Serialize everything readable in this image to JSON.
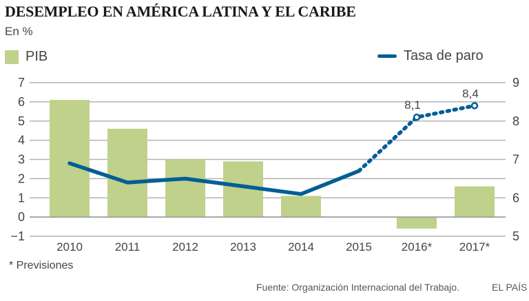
{
  "header": {
    "title": "DESEMPLEO EN AMÉRICA LATINA Y EL CARIBE",
    "unit": "En %"
  },
  "footer": {
    "footnote": "* Previsiones",
    "source": "Fuente: Organización Internacional del Trabajo.",
    "brand": "EL PAÍS"
  },
  "colors": {
    "bar": "#bfd18a",
    "line": "#005e96",
    "grid": "#b3b3b3",
    "text": "#444444"
  },
  "chart_data": {
    "type": "bar",
    "title": "DESEMPLEO EN AMÉRICA LATINA Y EL CARIBE",
    "subtitle": "En %",
    "categories": [
      "2010",
      "2011",
      "2012",
      "2013",
      "2014",
      "2015",
      "2016*",
      "2017*"
    ],
    "series": [
      {
        "name": "PIB",
        "type": "bar",
        "axis": "left",
        "values": [
          6.1,
          4.6,
          3.0,
          2.9,
          1.1,
          -0.1,
          -0.6,
          1.6
        ]
      },
      {
        "name": "Tasa de paro",
        "type": "line",
        "axis": "right",
        "values": [
          6.9,
          6.4,
          6.5,
          6.3,
          6.1,
          6.7,
          8.1,
          8.4
        ],
        "forecast_from_index": 5,
        "data_labels": [
          null,
          null,
          null,
          null,
          null,
          null,
          "8,1",
          "8,4"
        ]
      }
    ],
    "left_axis": {
      "ylim": [
        -1,
        7
      ],
      "ticks": [
        "−1",
        "0",
        "1",
        "2",
        "3",
        "4",
        "5",
        "6",
        "7"
      ],
      "tick_values": [
        -1,
        0,
        1,
        2,
        3,
        4,
        5,
        6,
        7
      ]
    },
    "right_axis": {
      "ylim": [
        5,
        9
      ],
      "ticks": [
        "5",
        "6",
        "7",
        "8",
        "9"
      ],
      "tick_values": [
        5,
        6,
        7,
        8,
        9
      ]
    },
    "legend": [
      {
        "label": "PIB",
        "kind": "bar",
        "placement": "top-left"
      },
      {
        "label": "Tasa de paro",
        "kind": "line",
        "placement": "top-right"
      }
    ],
    "grid": true,
    "xlabel": "",
    "ylabel": ""
  }
}
